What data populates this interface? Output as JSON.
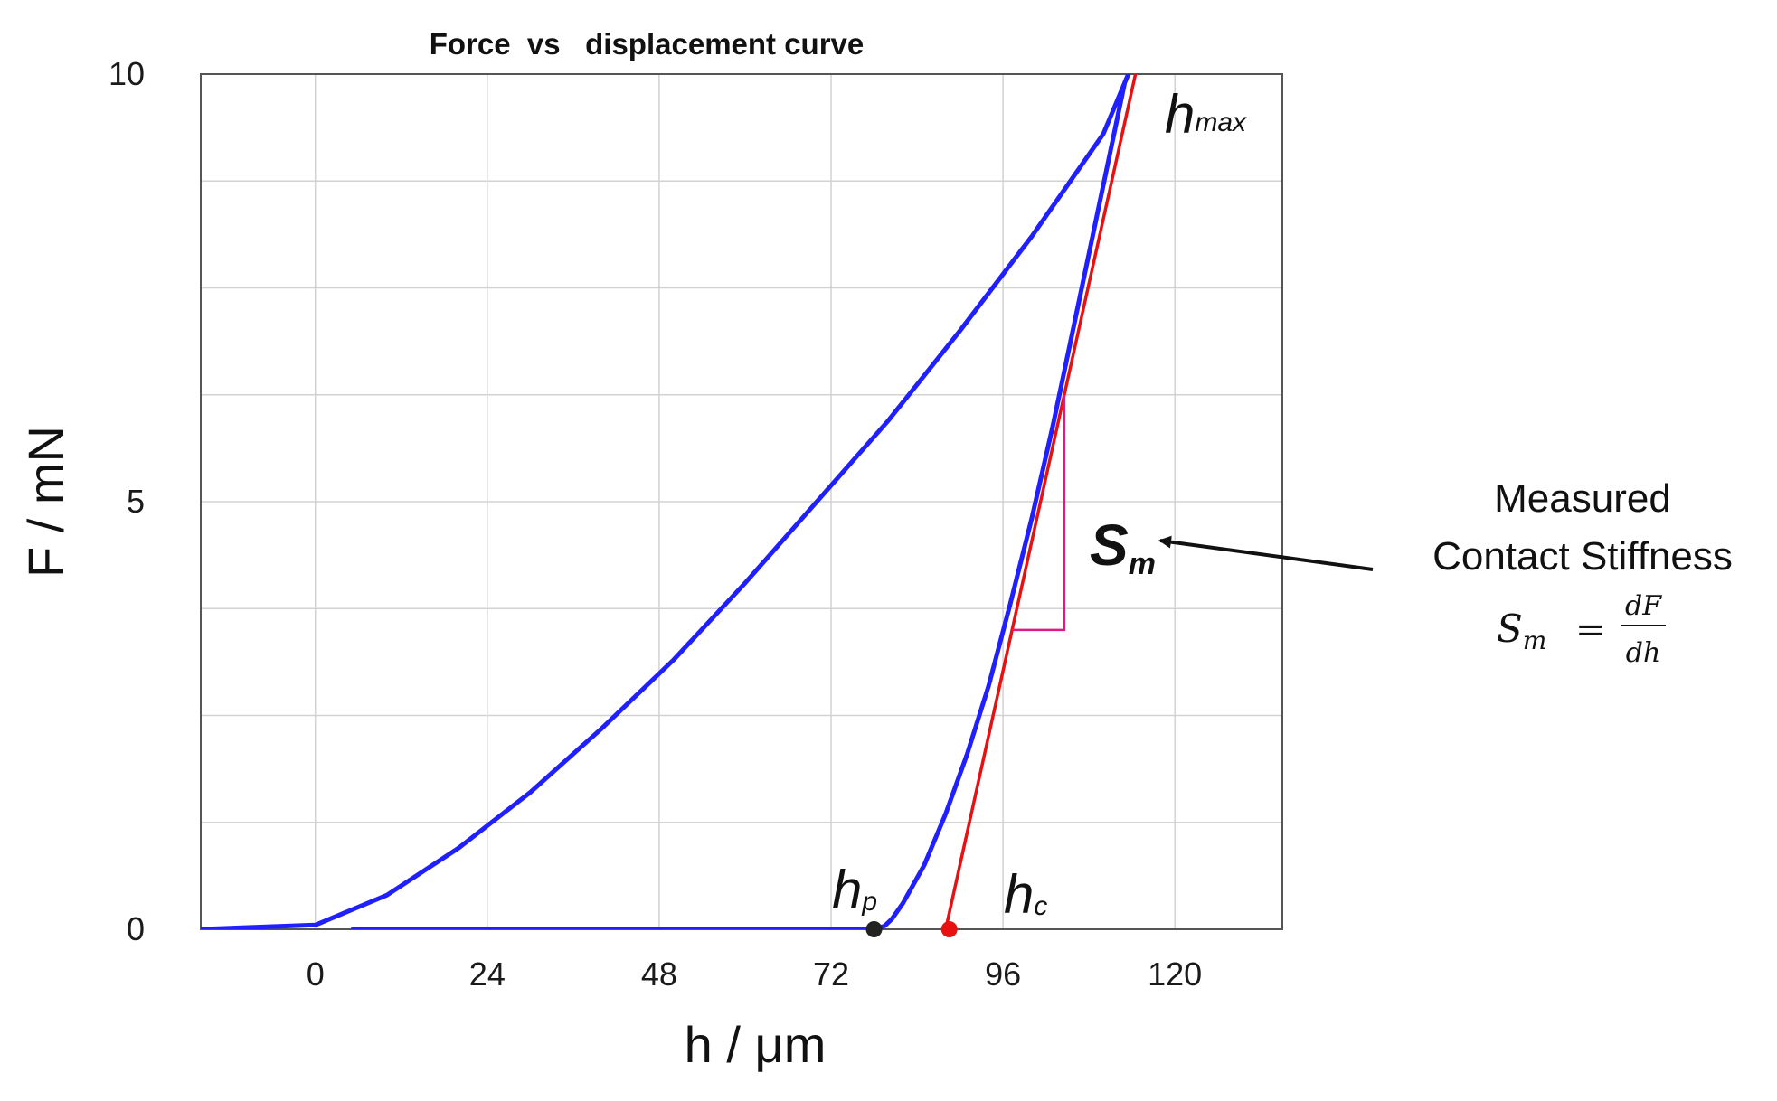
{
  "chart_data": {
    "type": "line",
    "title": "Force  vs   displacement curve",
    "xlabel": "h / μm",
    "ylabel": "F / mN",
    "xlim": [
      -16,
      135
    ],
    "ylim": [
      0,
      10
    ],
    "xticks": [
      0,
      24,
      48,
      72,
      96,
      120
    ],
    "yticks": [
      0,
      5,
      10
    ],
    "grid": true,
    "series": [
      {
        "color": "#1f1fff",
        "x": [
          -16,
          0,
          10,
          20,
          30,
          40,
          50,
          60,
          70,
          80,
          90,
          100,
          110,
          113.5,
          113,
          110,
          106,
          103,
          100,
          97,
          94,
          91,
          88,
          85,
          82,
          80.5,
          79.5,
          78.5,
          77,
          70,
          60,
          40,
          20,
          5
        ],
        "y": [
          0,
          0.05,
          0.4,
          0.95,
          1.6,
          2.35,
          3.15,
          4.05,
          5.0,
          5.95,
          7.0,
          8.1,
          9.3,
          10.0,
          9.9,
          8.7,
          7.1,
          5.9,
          4.8,
          3.8,
          2.85,
          2.05,
          1.35,
          0.75,
          0.3,
          0.12,
          0.04,
          0.01,
          0,
          0,
          0,
          0,
          0,
          0
        ]
      },
      {
        "color": "#e81010",
        "x": [
          88,
          114.5
        ],
        "y": [
          0,
          10
        ]
      }
    ],
    "points": [
      {
        "name": "hp",
        "x": 78,
        "y": 0,
        "color": "#222222"
      },
      {
        "name": "hc",
        "x": 88.5,
        "y": 0,
        "color": "#e81010"
      }
    ]
  },
  "labels": {
    "hmax_main": "h",
    "hmax_sub": "max",
    "hp_main": "h",
    "hp_sub": "p",
    "hc_main": "h",
    "hc_sub": "c",
    "sm_main": "S",
    "sm_sub": "m",
    "note_line1": "Measured",
    "note_line2": "Contact Stiffness",
    "formula_lhs_main": "S",
    "formula_lhs_sub": "m",
    "formula_eq": "=",
    "formula_num": "dF",
    "formula_den": "dh"
  },
  "colors": {
    "curve": "#1f1fff",
    "tangent": "#e81010",
    "slope_triangle": "#e0188c",
    "grid": "#d2d2d2"
  }
}
